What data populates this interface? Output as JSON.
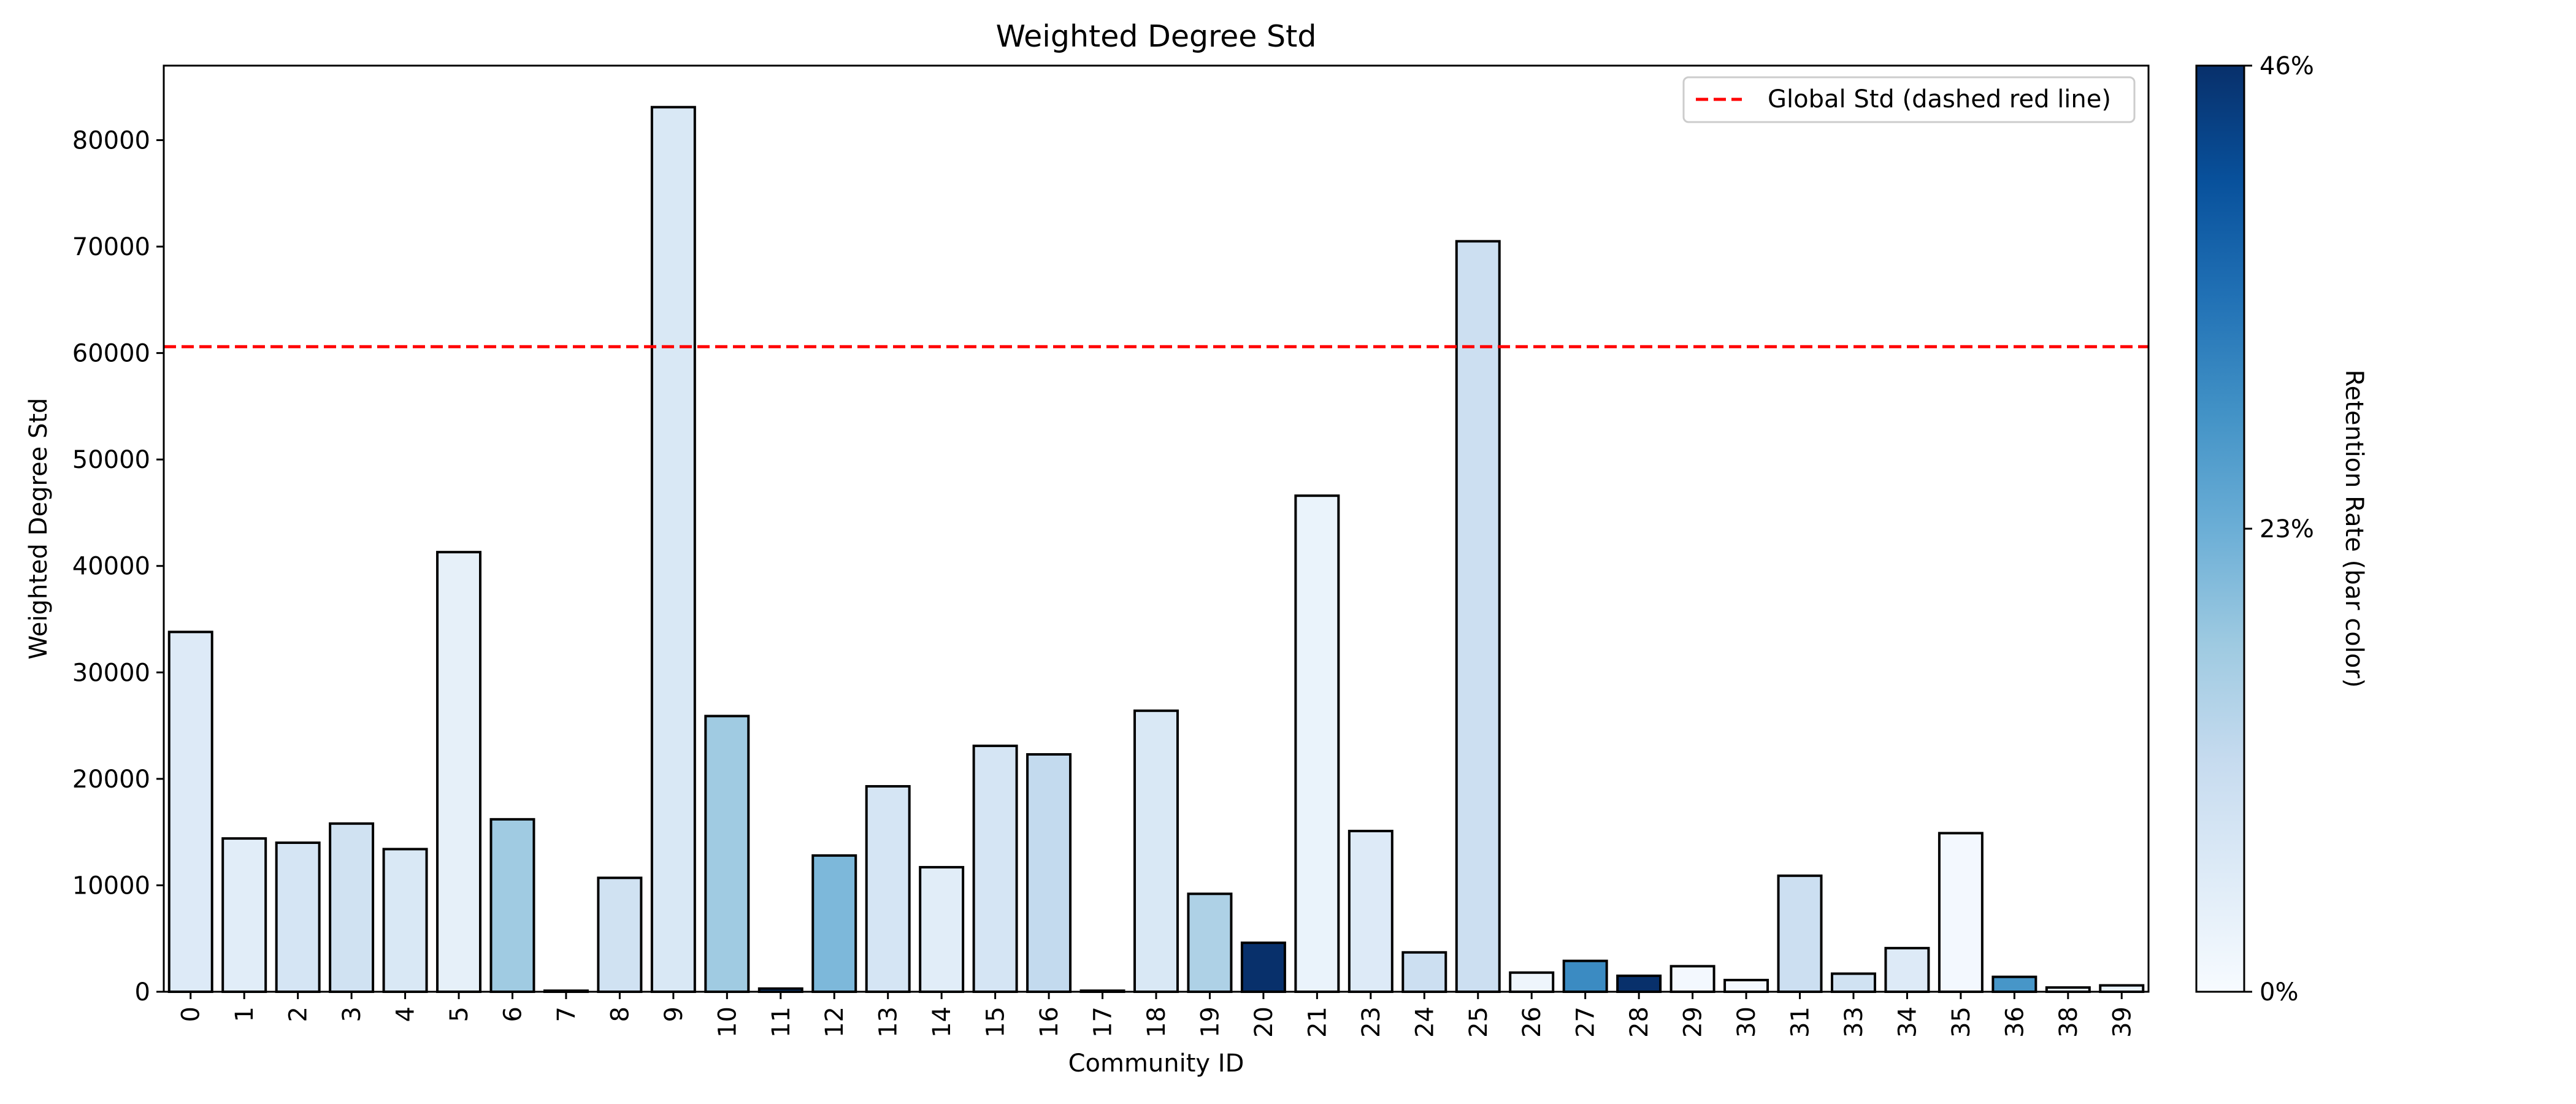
{
  "chart_data": {
    "type": "bar",
    "title": "Weighted Degree Std",
    "xlabel": "Community ID",
    "ylabel": "Weighted Degree Std",
    "ylim": [
      0,
      87000
    ],
    "yticks": [
      0,
      10000,
      20000,
      30000,
      40000,
      50000,
      60000,
      70000,
      80000
    ],
    "categories": [
      "0",
      "1",
      "2",
      "3",
      "4",
      "5",
      "6",
      "7",
      "8",
      "9",
      "10",
      "11",
      "12",
      "13",
      "14",
      "15",
      "16",
      "17",
      "18",
      "19",
      "20",
      "21",
      "23",
      "24",
      "25",
      "26",
      "27",
      "28",
      "29",
      "30",
      "31",
      "33",
      "34",
      "35",
      "36",
      "38",
      "39"
    ],
    "values": [
      33800,
      14400,
      14000,
      15800,
      13400,
      41300,
      16200,
      100,
      10700,
      83100,
      25900,
      300,
      12800,
      19300,
      11700,
      23100,
      22300,
      100,
      26400,
      9200,
      4600,
      46600,
      15100,
      3700,
      70500,
      1800,
      2900,
      1500,
      2400,
      1100,
      10900,
      1700,
      4100,
      14900,
      1400,
      400,
      600
    ],
    "retention_rate_pct": [
      6,
      5,
      8,
      9,
      7,
      4,
      17,
      0,
      9,
      7,
      17,
      44,
      21,
      8,
      5,
      8,
      12,
      0,
      7,
      15,
      46,
      3,
      6,
      10,
      10,
      2,
      30,
      46,
      1,
      1,
      10,
      9,
      6,
      1,
      28,
      4,
      3
    ],
    "reference_line": {
      "value": 60600,
      "label": "Global Std (dashed red line)",
      "color": "#ff0000",
      "style": "dashed"
    },
    "legend_position": "top-right",
    "colorbar": {
      "label": "Retention Rate (bar color)",
      "min": 0,
      "max": 46,
      "ticks": [
        "0%",
        "23%",
        "46%"
      ],
      "colormap": "Blues"
    },
    "grid": false
  }
}
